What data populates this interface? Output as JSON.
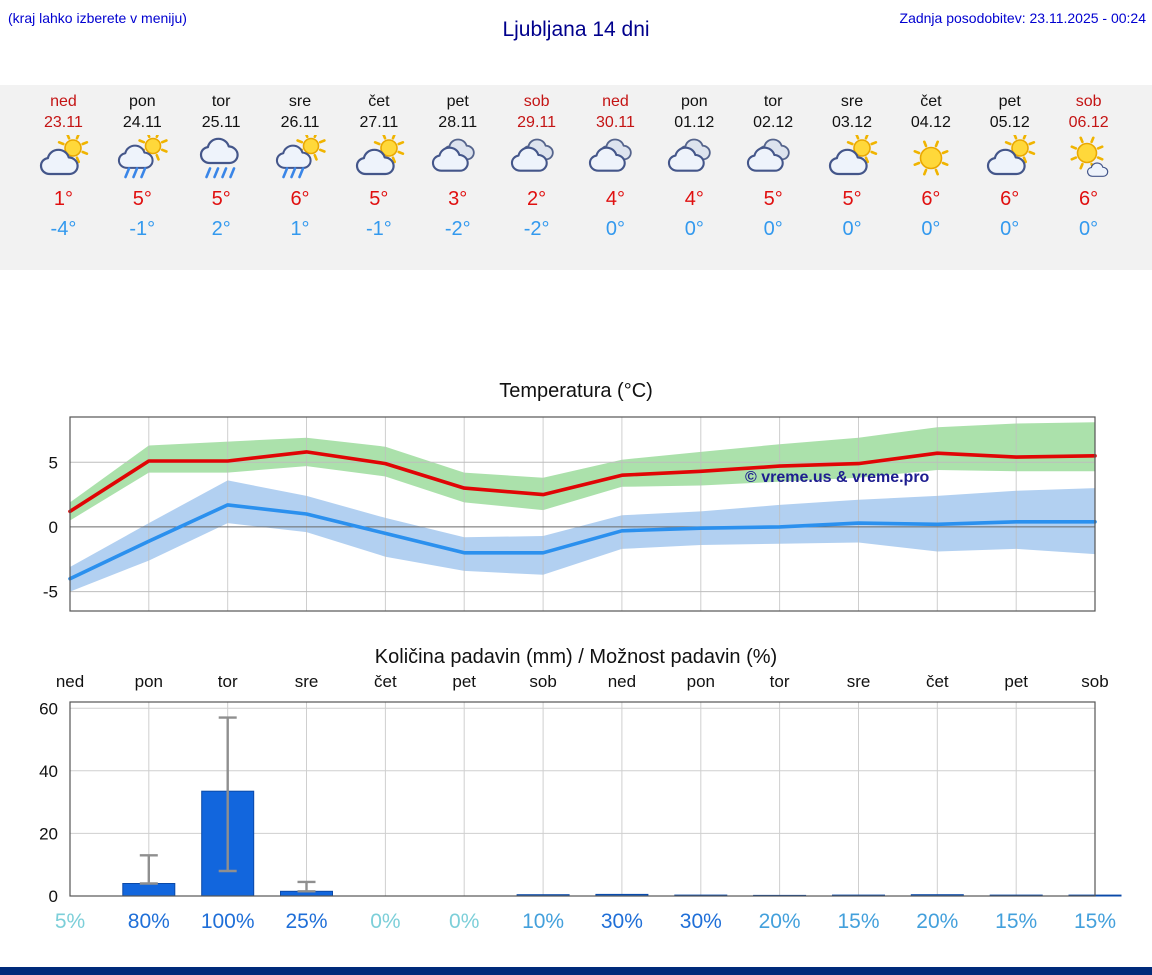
{
  "meta": {
    "bottom_bar_color": "#002a7a",
    "strip_bg": "#f2f2f2"
  },
  "header": {
    "hint": "(kraj lahko izberete v meniju)",
    "title": "Ljubljana 14 dni",
    "updated": "Zadnja posodobitev: 23.11.2025 - 00:24"
  },
  "forecast_days": [
    {
      "day": "ned",
      "date": "23.11",
      "weekend": true,
      "icon": "sun-cloud",
      "tmax": "1°",
      "tmin": "-4°"
    },
    {
      "day": "pon",
      "date": "24.11",
      "weekend": false,
      "icon": "sun-cloud-rain",
      "tmax": "5°",
      "tmin": "-1°"
    },
    {
      "day": "tor",
      "date": "25.11",
      "weekend": false,
      "icon": "cloud-rain",
      "tmax": "5°",
      "tmin": "2°"
    },
    {
      "day": "sre",
      "date": "26.11",
      "weekend": false,
      "icon": "sun-cloud-rain",
      "tmax": "6°",
      "tmin": "1°"
    },
    {
      "day": "čet",
      "date": "27.11",
      "weekend": false,
      "icon": "sun-cloud",
      "tmax": "5°",
      "tmin": "-1°"
    },
    {
      "day": "pet",
      "date": "28.11",
      "weekend": false,
      "icon": "cloudy",
      "tmax": "3°",
      "tmin": "-2°"
    },
    {
      "day": "sob",
      "date": "29.11",
      "weekend": true,
      "icon": "cloudy",
      "tmax": "2°",
      "tmin": "-2°"
    },
    {
      "day": "ned",
      "date": "30.11",
      "weekend": true,
      "icon": "cloudy",
      "tmax": "4°",
      "tmin": "0°"
    },
    {
      "day": "pon",
      "date": "01.12",
      "weekend": false,
      "icon": "cloudy",
      "tmax": "4°",
      "tmin": "0°"
    },
    {
      "day": "tor",
      "date": "02.12",
      "weekend": false,
      "icon": "cloudy",
      "tmax": "5°",
      "tmin": "0°"
    },
    {
      "day": "sre",
      "date": "03.12",
      "weekend": false,
      "icon": "sun-cloud",
      "tmax": "5°",
      "tmin": "0°"
    },
    {
      "day": "čet",
      "date": "04.12",
      "weekend": false,
      "icon": "sunny",
      "tmax": "6°",
      "tmin": "0°"
    },
    {
      "day": "pet",
      "date": "05.12",
      "weekend": false,
      "icon": "sun-cloud",
      "tmax": "6°",
      "tmin": "0°"
    },
    {
      "day": "sob",
      "date": "06.12",
      "weekend": true,
      "icon": "sun-small-cloud",
      "tmax": "6°",
      "tmin": "0°"
    }
  ],
  "chart_data": [
    {
      "type": "line",
      "title": "Temperatura (°C)",
      "categories": [
        "ned",
        "pon",
        "tor",
        "sre",
        "čet",
        "pet",
        "sob",
        "ned",
        "pon",
        "tor",
        "sre",
        "čet",
        "pet",
        "sob"
      ],
      "ylim": [
        -6.5,
        8.5
      ],
      "yticks": [
        -5,
        0,
        5
      ],
      "grid": true,
      "legend": "none",
      "watermark": "© vreme.us & vreme.pro",
      "watermark_color": "#1d1d8f",
      "series": [
        {
          "name": "max_temp",
          "color": "#e00505",
          "values": [
            1.2,
            5.1,
            5.1,
            5.8,
            4.9,
            3.0,
            2.5,
            4.0,
            4.3,
            4.7,
            4.9,
            5.7,
            5.4,
            5.5
          ]
        },
        {
          "name": "min_temp",
          "color": "#2b90ee",
          "values": [
            -4.0,
            -1.1,
            1.7,
            1.0,
            -0.5,
            -2.0,
            -2.0,
            -0.3,
            -0.1,
            0.0,
            0.3,
            0.2,
            0.4,
            0.4
          ]
        }
      ],
      "bands": [
        {
          "name": "max_temp_range",
          "color": "#a6dfa6",
          "upper": [
            1.9,
            6.3,
            6.6,
            6.9,
            6.2,
            4.2,
            3.8,
            5.2,
            5.8,
            6.4,
            6.9,
            7.7,
            8.0,
            8.1
          ],
          "lower": [
            0.5,
            4.2,
            4.2,
            4.7,
            3.9,
            1.9,
            1.3,
            3.1,
            3.2,
            3.5,
            3.8,
            4.4,
            4.3,
            4.3
          ]
        },
        {
          "name": "min_temp_range",
          "color": "#aecdf0",
          "upper": [
            -3.1,
            0.3,
            3.6,
            2.4,
            0.7,
            -0.8,
            -0.7,
            0.9,
            1.2,
            1.7,
            2.1,
            2.4,
            2.8,
            3.0
          ],
          "lower": [
            -5.0,
            -2.6,
            0.3,
            -0.4,
            -2.3,
            -3.4,
            -3.7,
            -1.7,
            -1.4,
            -1.3,
            -1.2,
            -1.9,
            -1.7,
            -2.1
          ]
        }
      ]
    },
    {
      "type": "bar",
      "title": "Količina padavin (mm) / Možnost padavin (%)",
      "categories": [
        "ned",
        "pon",
        "tor",
        "sre",
        "čet",
        "pet",
        "sob",
        "ned",
        "pon",
        "tor",
        "sre",
        "čet",
        "pet",
        "sob"
      ],
      "ylim": [
        0,
        62
      ],
      "yticks": [
        0,
        20,
        40,
        60
      ],
      "ylabel": "",
      "bar_color": "#1266dd",
      "bar_edge_color": "#0a49a8",
      "whisker_color": "#8f8f8f",
      "values": [
        0,
        4,
        33.5,
        1.5,
        0,
        0,
        0.4,
        0.5,
        0.3,
        0.2,
        0.3,
        0.4,
        0.3,
        0.3
      ],
      "whiskers": [
        null,
        [
          4,
          13
        ],
        [
          8,
          57
        ],
        [
          1.5,
          4.5
        ],
        null,
        null,
        null,
        null,
        null,
        null,
        null,
        null,
        null,
        null
      ],
      "probability_pct": [
        5,
        80,
        100,
        25,
        0,
        0,
        10,
        30,
        30,
        20,
        15,
        20,
        15,
        15
      ],
      "pct_colors": {
        "low": "#7ccfd9",
        "mid": "#43a0dc",
        "high": "#1f6fd8"
      }
    }
  ]
}
